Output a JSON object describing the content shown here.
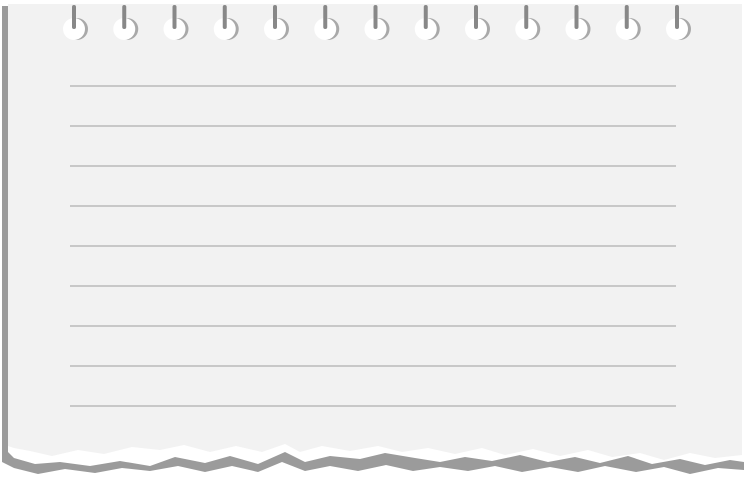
{
  "notepad": {
    "paper_color": "#f2f2f2",
    "shadow_color": "#9b9b9b",
    "rule_color": "#c8c8c8",
    "ring_color": "#ffffff",
    "ring_post_color": "#888888",
    "ring_count": 13,
    "rule_count": 9,
    "torn_bottom_edge": true,
    "icons": [
      "spiral-ring-icon"
    ],
    "text": []
  }
}
